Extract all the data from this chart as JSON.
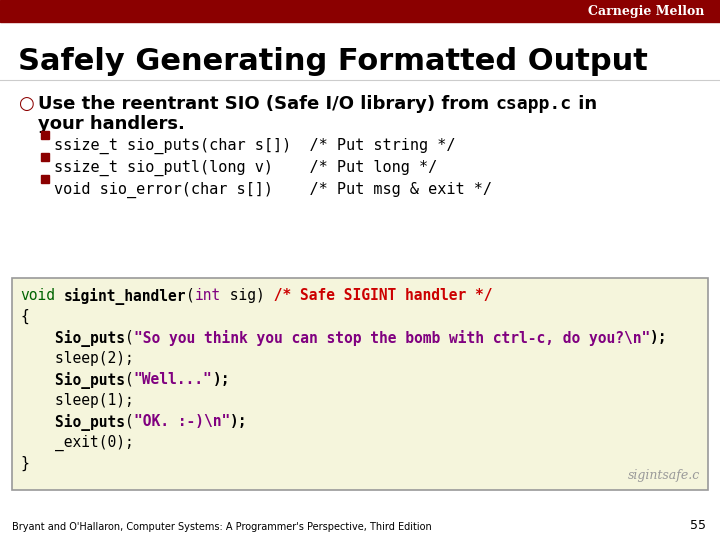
{
  "bg_color": "#ffffff",
  "header_bar_color": "#8B0000",
  "header_text": "Carnegie Mellon",
  "header_text_color": "#ffffff",
  "title": "Safely Generating Formatted Output",
  "title_color": "#000000",
  "bullet_color": "#8B0000",
  "sub_bullets": [
    "ssize_t sio_puts(char s[])  /* Put string */",
    "ssize_t sio_putl(long v)    /* Put long */",
    "void sio_error(char s[])    /* Put msg & exit */"
  ],
  "sub_bullet_color": "#8B0000",
  "code_box_bg": "#f5f5dc",
  "code_box_border": "#999999",
  "code_lines": [
    [
      {
        "text": "void",
        "color": "#006400",
        "bold": false
      },
      {
        "text": " ",
        "color": "#000000",
        "bold": false
      },
      {
        "text": "sigint_handler",
        "color": "#000000",
        "bold": true
      },
      {
        "text": "(",
        "color": "#000000",
        "bold": false
      },
      {
        "text": "int",
        "color": "#800080",
        "bold": false
      },
      {
        "text": " sig)",
        "color": "#000000",
        "bold": false
      },
      {
        "text": " /* Safe SIGINT handler */",
        "color": "#cc0000",
        "bold": true
      }
    ],
    [
      {
        "text": "{",
        "color": "#000000",
        "bold": false
      }
    ],
    [
      {
        "text": "    Sio_puts",
        "color": "#000000",
        "bold": true
      },
      {
        "text": "(",
        "color": "#000000",
        "bold": false
      },
      {
        "text": "\"So you think you can stop the bomb with ctrl-c, do you?\\n\"",
        "color": "#800080",
        "bold": true
      },
      {
        "text": ");",
        "color": "#000000",
        "bold": true
      }
    ],
    [
      {
        "text": "    sleep(2);",
        "color": "#000000",
        "bold": false
      }
    ],
    [
      {
        "text": "    Sio_puts",
        "color": "#000000",
        "bold": true
      },
      {
        "text": "(",
        "color": "#000000",
        "bold": false
      },
      {
        "text": "\"Well...\"",
        "color": "#800080",
        "bold": true
      },
      {
        "text": ");",
        "color": "#000000",
        "bold": true
      }
    ],
    [
      {
        "text": "    sleep(1);",
        "color": "#000000",
        "bold": false
      }
    ],
    [
      {
        "text": "    Sio_puts",
        "color": "#000000",
        "bold": true
      },
      {
        "text": "(",
        "color": "#000000",
        "bold": false
      },
      {
        "text": "\"OK. :-)\\n\"",
        "color": "#800080",
        "bold": true
      },
      {
        "text": ");",
        "color": "#000000",
        "bold": true
      }
    ],
    [
      {
        "text": "    _exit(0);",
        "color": "#000000",
        "bold": false
      }
    ],
    [
      {
        "text": "}",
        "color": "#000000",
        "bold": false
      }
    ]
  ],
  "filename_label": "sigintsafe.c",
  "filename_color": "#999999",
  "footer_text": "Bryant and O'Hallaron, Computer Systems: A Programmer's Perspective, Third Edition",
  "footer_page": "55",
  "footer_color": "#000000",
  "title_fontsize": 22,
  "bullet_fontsize": 13,
  "sub_bullet_fontsize": 11,
  "code_fontsize": 10.5
}
